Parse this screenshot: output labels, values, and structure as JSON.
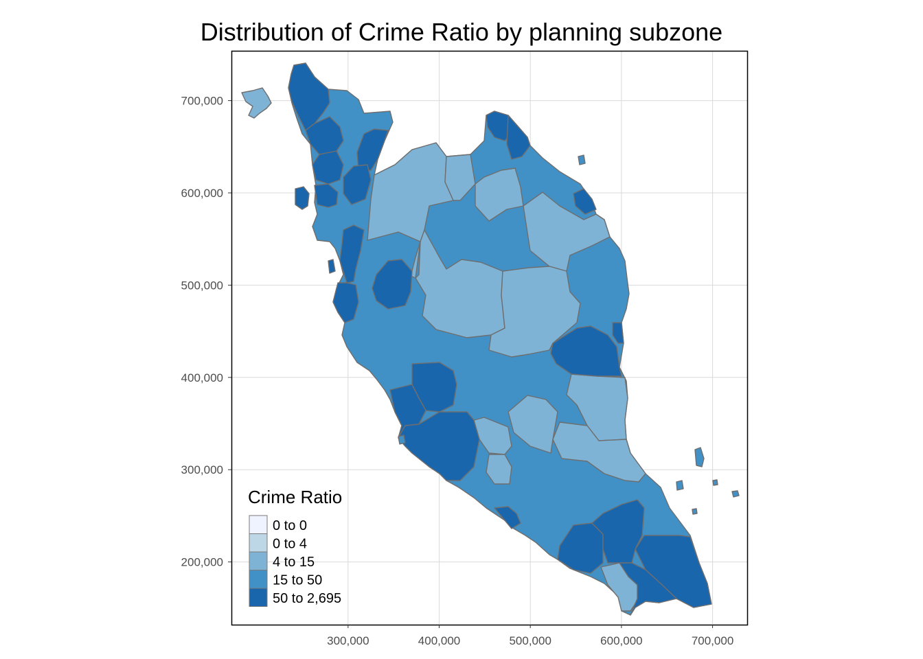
{
  "title": "Distribution of Crime Ratio by planning subzone",
  "chart_data": {
    "type": "choropleth",
    "title": "Distribution of Crime Ratio by planning subzone",
    "x_ticks": [
      300000,
      400000,
      500000,
      600000,
      700000
    ],
    "x_tick_labels": [
      "300,000",
      "400,000",
      "500,000",
      "600,000",
      "700,000"
    ],
    "y_ticks": [
      200000,
      300000,
      400000,
      500000,
      600000,
      700000
    ],
    "y_tick_labels": [
      "200,000",
      "300,000",
      "400,000",
      "500,000",
      "600,000",
      "700,000"
    ],
    "xlim": [
      172000,
      738000
    ],
    "ylim": [
      132000,
      754000
    ],
    "grid": true,
    "legend": {
      "title": "Crime Ratio",
      "position": "bottom-left",
      "classes": [
        {
          "label": "0 to 0",
          "color": "#eff3ff"
        },
        {
          "label": "0 to 4",
          "color": "#bdd7e7"
        },
        {
          "label": "4 to 15",
          "color": "#7fb3d6"
        },
        {
          "label": "15 to 50",
          "color": "#4190c6"
        },
        {
          "label": "50 to 2,695",
          "color": "#1a66ad"
        }
      ]
    }
  },
  "colors": {
    "c2": "#7fb3d6",
    "c3": "#4190c6",
    "c4": "#1a66ad",
    "border": "#6e6e6e"
  }
}
